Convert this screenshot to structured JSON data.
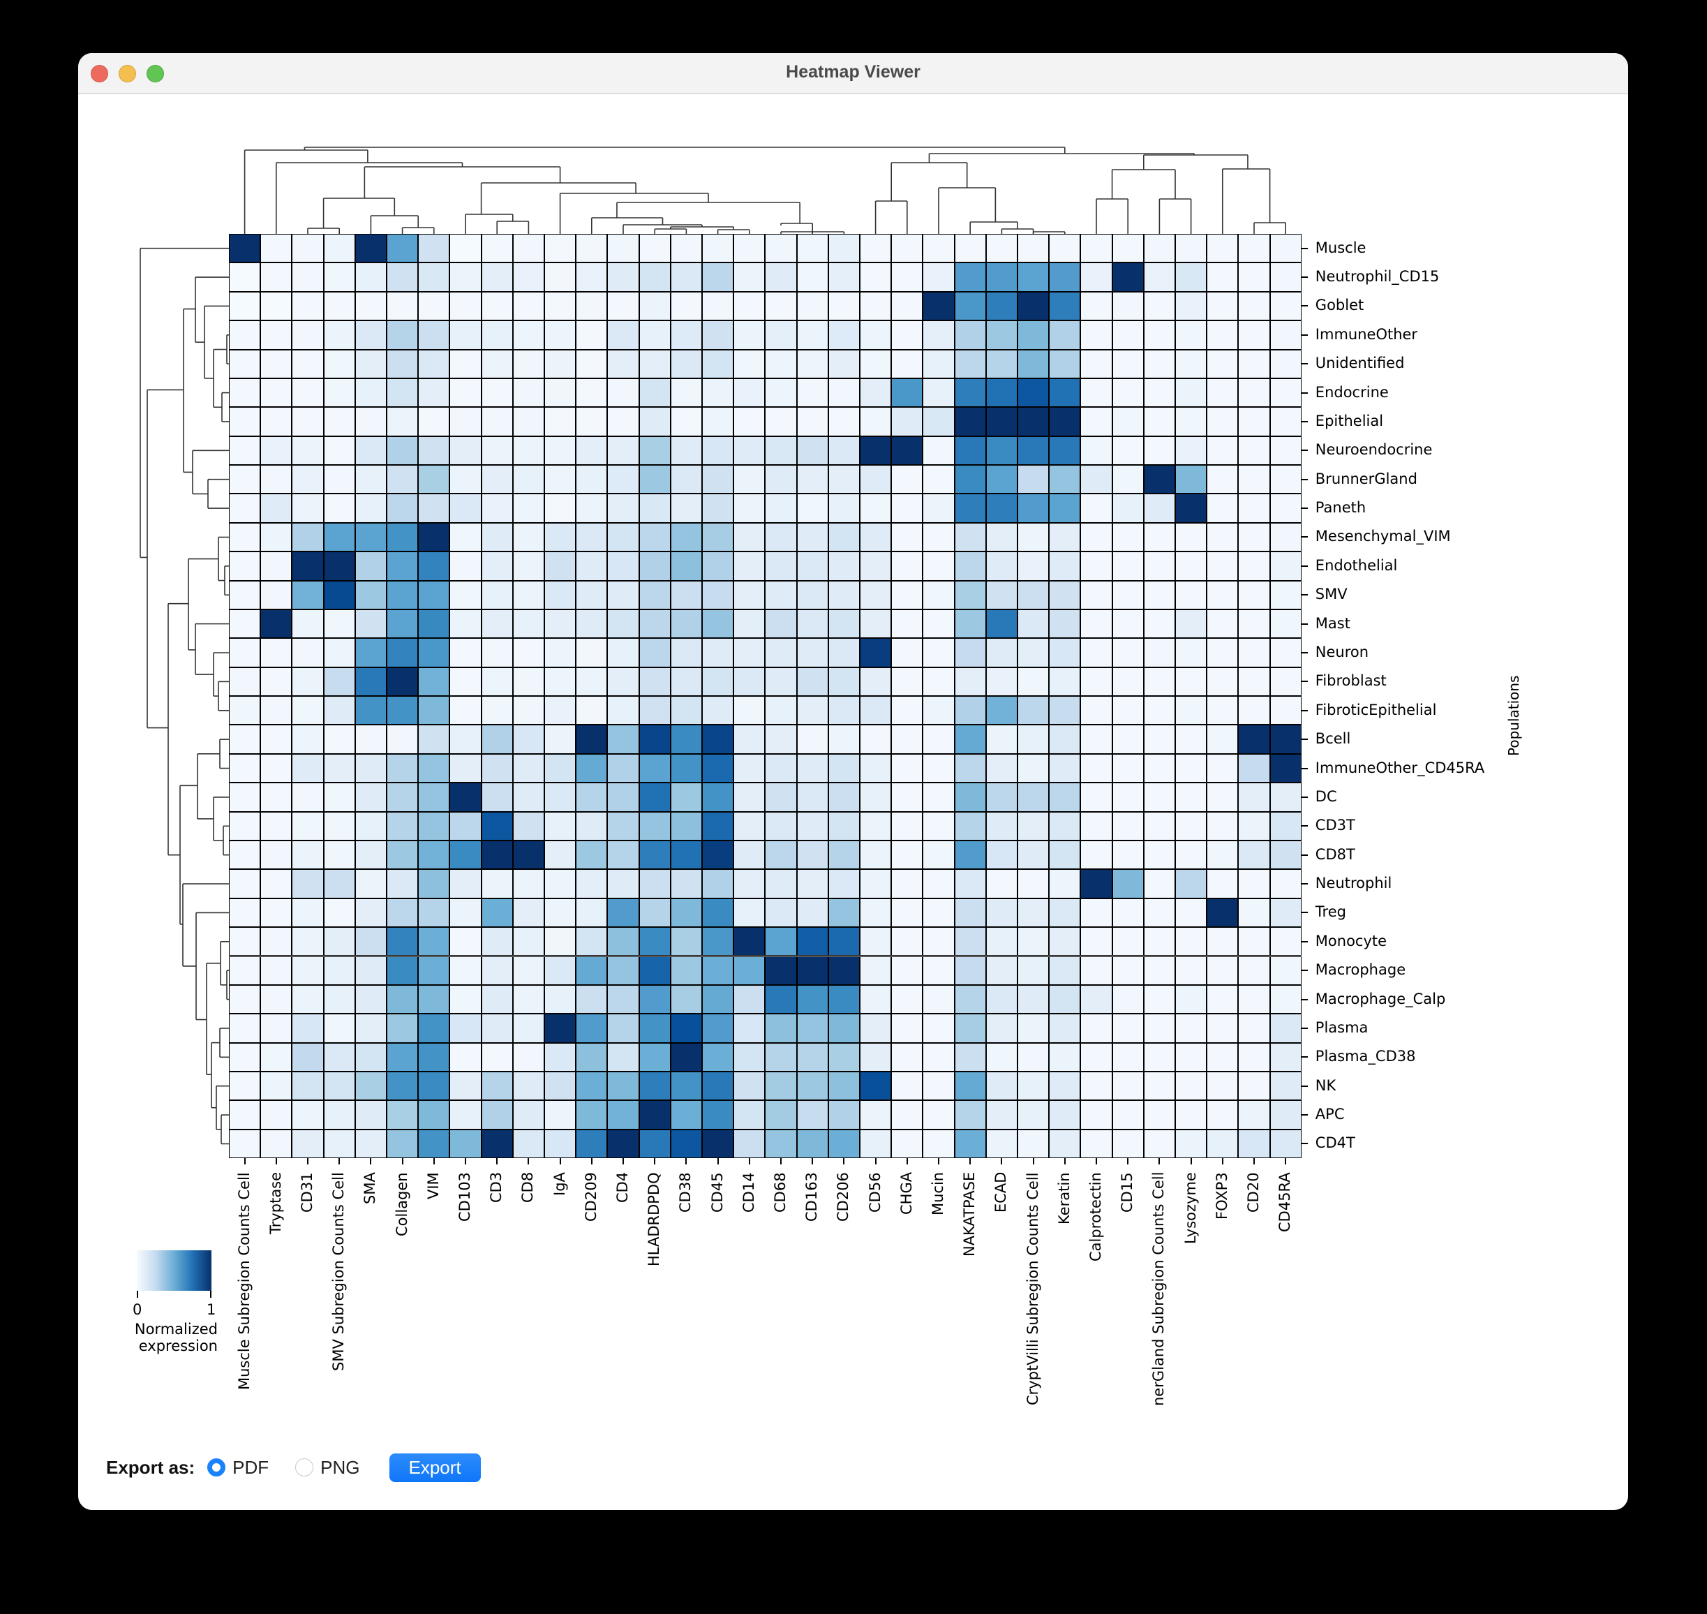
{
  "window": {
    "title": "Heatmap Viewer"
  },
  "chart_data": {
    "type": "heatmap",
    "title": "",
    "xlabel": "",
    "ylabel": "Populations",
    "colormap": "Blues",
    "colorbar": {
      "min": 0,
      "max": 1,
      "ticks": [
        "0",
        "1"
      ],
      "label": "Normalized\nexpression"
    },
    "row_dendrogram": true,
    "col_dendrogram": true,
    "columns": [
      "Muscle Subregion Counts Cell",
      "Tryptase",
      "CD31",
      "SMV Subregion Counts Cell",
      "SMA",
      "Collagen",
      "VIM",
      "CD103",
      "CD3",
      "CD8",
      "IgA",
      "CD209",
      "CD4",
      "HLADRDPDQ",
      "CD38",
      "CD45",
      "CD14",
      "CD68",
      "CD163",
      "CD206",
      "CD56",
      "CHGA",
      "Mucin",
      "NAKATPASE",
      "ECAD",
      "CryptVilli Subregion Counts Cell",
      "Keratin",
      "Calprotectin",
      "CD15",
      "BrunnerGland Subregion Counts Cell",
      "Lysozyme",
      "FOXP3",
      "CD20",
      "CD45RA"
    ],
    "column_labels_display": [
      "Muscle Subregion Counts Cell",
      "Tryptase",
      "CD31",
      "SMV Subregion Counts Cell",
      "SMA",
      "Collagen",
      "VIM",
      "CD103",
      "CD3",
      "CD8",
      "IgA",
      "CD209",
      "CD4",
      "HLADRDPDQ",
      "CD38",
      "CD45",
      "CD14",
      "CD68",
      "CD163",
      "CD206",
      "CD56",
      "CHGA",
      "Mucin",
      "NAKATPASE",
      "ECAD",
      "CryptVilli Subregion Counts Cell",
      "Keratin",
      "Calprotectin",
      "CD15",
      "nerGland Subregion Counts Cell",
      "Lysozyme",
      "FOXP3",
      "CD20",
      "CD45RA"
    ],
    "rows": [
      "Muscle",
      "Neutrophil_CD15",
      "Goblet",
      "ImmuneOther",
      "Unidentified",
      "Endocrine",
      "Epithelial",
      "Neuroendocrine",
      "BrunnerGland",
      "Paneth",
      "Mesenchymal_VIM",
      "Endothelial",
      "SMV",
      "Mast",
      "Neuron",
      "Fibroblast",
      "FibroticEpithelial",
      "Bcell",
      "ImmuneOther_CD45RA",
      "DC",
      "CD3T",
      "CD8T",
      "Neutrophil",
      "Treg",
      "Monocyte",
      "Macrophage",
      "Macrophage_Calp",
      "Plasma",
      "Plasma_CD38",
      "NK",
      "APC",
      "CD4T"
    ],
    "values": [
      [
        1.0,
        0.02,
        0.03,
        0.05,
        1.0,
        0.55,
        0.2,
        0.01,
        0.02,
        0.03,
        0.02,
        0.03,
        0.04,
        0.02,
        0.03,
        0.04,
        0.03,
        0.04,
        0.04,
        0.08,
        0.02,
        0.02,
        0.02,
        0.02,
        0.02,
        0.02,
        0.02,
        0.02,
        0.02,
        0.03,
        0.03,
        0.02,
        0.02,
        0.03
      ],
      [
        0.01,
        0.02,
        0.03,
        0.04,
        0.08,
        0.2,
        0.15,
        0.06,
        0.1,
        0.07,
        0.03,
        0.07,
        0.12,
        0.18,
        0.14,
        0.28,
        0.06,
        0.12,
        0.04,
        0.09,
        0.02,
        0.02,
        0.07,
        0.58,
        0.58,
        0.55,
        0.58,
        0.07,
        1.0,
        0.07,
        0.15,
        0.02,
        0.02,
        0.03
      ],
      [
        0.01,
        0.01,
        0.02,
        0.02,
        0.02,
        0.02,
        0.02,
        0.02,
        0.02,
        0.02,
        0.02,
        0.03,
        0.02,
        0.06,
        0.02,
        0.03,
        0.02,
        0.02,
        0.03,
        0.02,
        0.02,
        0.02,
        1.0,
        0.6,
        0.7,
        1.0,
        0.7,
        0.02,
        0.03,
        0.02,
        0.07,
        0.02,
        0.02,
        0.02
      ],
      [
        0.02,
        0.02,
        0.03,
        0.06,
        0.14,
        0.3,
        0.22,
        0.08,
        0.08,
        0.05,
        0.05,
        0.02,
        0.14,
        0.08,
        0.13,
        0.2,
        0.06,
        0.09,
        0.06,
        0.13,
        0.05,
        0.02,
        0.09,
        0.32,
        0.38,
        0.45,
        0.32,
        0.02,
        0.02,
        0.02,
        0.04,
        0.02,
        0.02,
        0.03
      ],
      [
        0.02,
        0.02,
        0.02,
        0.04,
        0.1,
        0.22,
        0.14,
        0.02,
        0.06,
        0.04,
        0.06,
        0.02,
        0.1,
        0.1,
        0.14,
        0.18,
        0.04,
        0.05,
        0.05,
        0.1,
        0.04,
        0.02,
        0.08,
        0.28,
        0.3,
        0.45,
        0.32,
        0.02,
        0.02,
        0.02,
        0.04,
        0.02,
        0.02,
        0.03
      ],
      [
        0.02,
        0.02,
        0.02,
        0.04,
        0.08,
        0.18,
        0.1,
        0.02,
        0.02,
        0.04,
        0.04,
        0.02,
        0.03,
        0.18,
        0.04,
        0.06,
        0.07,
        0.05,
        0.03,
        0.03,
        0.1,
        0.6,
        0.08,
        0.7,
        0.75,
        0.85,
        0.75,
        0.02,
        0.02,
        0.02,
        0.06,
        0.02,
        0.02,
        0.02
      ],
      [
        0.02,
        0.02,
        0.02,
        0.02,
        0.03,
        0.06,
        0.02,
        0.03,
        0.03,
        0.04,
        0.02,
        0.02,
        0.02,
        0.12,
        0.02,
        0.05,
        0.02,
        0.02,
        0.02,
        0.02,
        0.04,
        0.12,
        0.15,
        1.0,
        1.0,
        1.0,
        1.0,
        0.02,
        0.04,
        0.02,
        0.04,
        0.02,
        0.02,
        0.02
      ],
      [
        0.02,
        0.07,
        0.06,
        0.02,
        0.14,
        0.32,
        0.2,
        0.1,
        0.06,
        0.06,
        0.05,
        0.1,
        0.1,
        0.34,
        0.12,
        0.16,
        0.12,
        0.15,
        0.2,
        0.14,
        1.0,
        1.0,
        0.03,
        0.72,
        0.65,
        0.72,
        0.72,
        0.04,
        0.02,
        0.02,
        0.07,
        0.02,
        0.02,
        0.02
      ],
      [
        0.02,
        0.03,
        0.07,
        0.03,
        0.08,
        0.2,
        0.34,
        0.06,
        0.1,
        0.08,
        0.05,
        0.08,
        0.13,
        0.38,
        0.14,
        0.2,
        0.06,
        0.12,
        0.1,
        0.1,
        0.12,
        0.02,
        0.02,
        0.65,
        0.55,
        0.25,
        0.4,
        0.12,
        0.04,
        1.0,
        0.45,
        0.02,
        0.02,
        0.02
      ],
      [
        0.02,
        0.12,
        0.06,
        0.02,
        0.08,
        0.28,
        0.2,
        0.14,
        0.07,
        0.05,
        0.02,
        0.06,
        0.1,
        0.15,
        0.1,
        0.2,
        0.06,
        0.08,
        0.04,
        0.08,
        0.04,
        0.02,
        0.06,
        0.7,
        0.7,
        0.58,
        0.55,
        0.02,
        0.08,
        0.12,
        1.0,
        0.02,
        0.02,
        0.02
      ],
      [
        0.02,
        0.05,
        0.32,
        0.55,
        0.55,
        0.62,
        1.0,
        0.04,
        0.12,
        0.06,
        0.14,
        0.14,
        0.18,
        0.28,
        0.4,
        0.35,
        0.1,
        0.14,
        0.12,
        0.18,
        0.12,
        0.02,
        0.02,
        0.2,
        0.1,
        0.05,
        0.1,
        0.02,
        0.02,
        0.02,
        0.02,
        0.02,
        0.02,
        0.03
      ],
      [
        0.02,
        0.03,
        1.0,
        1.0,
        0.32,
        0.55,
        0.68,
        0.03,
        0.1,
        0.06,
        0.2,
        0.12,
        0.16,
        0.32,
        0.42,
        0.32,
        0.1,
        0.14,
        0.14,
        0.12,
        0.1,
        0.02,
        0.02,
        0.28,
        0.12,
        0.07,
        0.12,
        0.02,
        0.02,
        0.02,
        0.02,
        0.02,
        0.02,
        0.06
      ],
      [
        0.02,
        0.03,
        0.48,
        0.9,
        0.38,
        0.55,
        0.55,
        0.04,
        0.08,
        0.06,
        0.14,
        0.12,
        0.12,
        0.28,
        0.22,
        0.24,
        0.1,
        0.12,
        0.14,
        0.12,
        0.1,
        0.02,
        0.04,
        0.34,
        0.2,
        0.22,
        0.2,
        0.02,
        0.02,
        0.02,
        0.02,
        0.02,
        0.02,
        0.04
      ],
      [
        0.02,
        1.0,
        0.05,
        0.04,
        0.2,
        0.55,
        0.66,
        0.06,
        0.1,
        0.08,
        0.1,
        0.12,
        0.18,
        0.28,
        0.32,
        0.4,
        0.1,
        0.22,
        0.14,
        0.18,
        0.1,
        0.02,
        0.02,
        0.38,
        0.72,
        0.14,
        0.2,
        0.02,
        0.02,
        0.02,
        0.1,
        0.02,
        0.02,
        0.04
      ],
      [
        0.02,
        0.02,
        0.03,
        0.05,
        0.55,
        0.68,
        0.6,
        0.02,
        0.03,
        0.02,
        0.05,
        0.03,
        0.08,
        0.28,
        0.14,
        0.12,
        0.1,
        0.12,
        0.12,
        0.14,
        0.95,
        0.02,
        0.02,
        0.25,
        0.12,
        0.1,
        0.16,
        0.02,
        0.02,
        0.03,
        0.04,
        0.02,
        0.02,
        0.02
      ],
      [
        0.03,
        0.02,
        0.06,
        0.24,
        0.72,
        1.0,
        0.48,
        0.02,
        0.05,
        0.04,
        0.05,
        0.06,
        0.1,
        0.2,
        0.14,
        0.18,
        0.14,
        0.12,
        0.2,
        0.18,
        0.1,
        0.02,
        0.02,
        0.1,
        0.07,
        0.04,
        0.08,
        0.02,
        0.02,
        0.02,
        0.02,
        0.02,
        0.02,
        0.02
      ],
      [
        0.04,
        0.03,
        0.04,
        0.12,
        0.62,
        0.62,
        0.45,
        0.02,
        0.04,
        0.04,
        0.07,
        0.03,
        0.08,
        0.2,
        0.18,
        0.12,
        0.04,
        0.08,
        0.1,
        0.14,
        0.14,
        0.02,
        0.05,
        0.32,
        0.48,
        0.28,
        0.24,
        0.02,
        0.02,
        0.02,
        0.04,
        0.02,
        0.02,
        0.02
      ],
      [
        0.02,
        0.02,
        0.05,
        0.02,
        0.03,
        0.03,
        0.2,
        0.08,
        0.32,
        0.16,
        0.06,
        1.0,
        0.4,
        0.92,
        0.65,
        0.92,
        0.1,
        0.1,
        0.03,
        0.05,
        0.02,
        0.02,
        0.02,
        0.52,
        0.06,
        0.08,
        0.14,
        0.02,
        0.02,
        0.02,
        0.02,
        0.04,
        1.0,
        1.0
      ],
      [
        0.02,
        0.02,
        0.12,
        0.1,
        0.12,
        0.3,
        0.4,
        0.1,
        0.2,
        0.12,
        0.18,
        0.52,
        0.32,
        0.55,
        0.62,
        0.78,
        0.1,
        0.14,
        0.12,
        0.18,
        0.08,
        0.02,
        0.02,
        0.28,
        0.1,
        0.06,
        0.12,
        0.02,
        0.02,
        0.02,
        0.02,
        0.02,
        0.25,
        1.0
      ],
      [
        0.02,
        0.02,
        0.03,
        0.04,
        0.12,
        0.3,
        0.4,
        1.0,
        0.22,
        0.12,
        0.14,
        0.3,
        0.32,
        0.75,
        0.38,
        0.62,
        0.1,
        0.2,
        0.14,
        0.22,
        0.08,
        0.02,
        0.02,
        0.45,
        0.28,
        0.28,
        0.28,
        0.02,
        0.02,
        0.02,
        0.02,
        0.02,
        0.1,
        0.1
      ],
      [
        0.02,
        0.02,
        0.04,
        0.04,
        0.08,
        0.3,
        0.4,
        0.28,
        0.85,
        0.2,
        0.08,
        0.12,
        0.3,
        0.4,
        0.42,
        0.78,
        0.1,
        0.14,
        0.12,
        0.18,
        0.06,
        0.02,
        0.02,
        0.3,
        0.12,
        0.1,
        0.14,
        0.02,
        0.02,
        0.02,
        0.02,
        0.02,
        0.06,
        0.16
      ],
      [
        0.02,
        0.03,
        0.06,
        0.04,
        0.1,
        0.38,
        0.48,
        0.65,
        1.0,
        1.0,
        0.1,
        0.38,
        0.3,
        0.7,
        0.75,
        0.95,
        0.12,
        0.28,
        0.2,
        0.3,
        0.06,
        0.02,
        0.04,
        0.58,
        0.16,
        0.12,
        0.18,
        0.02,
        0.02,
        0.02,
        0.02,
        0.04,
        0.14,
        0.2
      ],
      [
        0.02,
        0.02,
        0.2,
        0.22,
        0.06,
        0.14,
        0.42,
        0.1,
        0.06,
        0.06,
        0.05,
        0.1,
        0.12,
        0.22,
        0.2,
        0.32,
        0.1,
        0.12,
        0.1,
        0.14,
        0.06,
        0.02,
        0.02,
        0.14,
        0.02,
        0.02,
        0.05,
        1.0,
        0.45,
        0.02,
        0.28,
        0.02,
        0.02,
        0.02
      ],
      [
        0.02,
        0.02,
        0.05,
        0.02,
        0.1,
        0.28,
        0.3,
        0.06,
        0.5,
        0.1,
        0.05,
        0.08,
        0.58,
        0.3,
        0.45,
        0.65,
        0.08,
        0.14,
        0.12,
        0.4,
        0.05,
        0.02,
        0.02,
        0.22,
        0.12,
        0.1,
        0.14,
        0.02,
        0.02,
        0.02,
        0.02,
        1.0,
        0.04,
        0.12
      ],
      [
        0.02,
        0.03,
        0.06,
        0.1,
        0.22,
        0.68,
        0.5,
        0.02,
        0.12,
        0.08,
        0.04,
        0.18,
        0.42,
        0.65,
        0.34,
        0.6,
        1.0,
        0.55,
        0.82,
        0.78,
        0.06,
        0.02,
        0.02,
        0.22,
        0.08,
        0.06,
        0.1,
        0.02,
        0.02,
        0.02,
        0.02,
        0.02,
        0.02,
        0.02
      ],
      [
        0.02,
        0.03,
        0.06,
        0.08,
        0.12,
        0.65,
        0.5,
        0.04,
        0.1,
        0.06,
        0.14,
        0.52,
        0.4,
        0.8,
        0.38,
        0.5,
        0.5,
        1.0,
        1.0,
        1.0,
        0.06,
        0.02,
        0.02,
        0.25,
        0.1,
        0.08,
        0.14,
        0.02,
        0.02,
        0.02,
        0.02,
        0.02,
        0.02,
        0.04
      ],
      [
        0.02,
        0.03,
        0.06,
        0.08,
        0.12,
        0.45,
        0.45,
        0.04,
        0.12,
        0.06,
        0.08,
        0.22,
        0.28,
        0.58,
        0.35,
        0.52,
        0.22,
        0.72,
        0.62,
        0.65,
        0.06,
        0.02,
        0.03,
        0.3,
        0.14,
        0.12,
        0.18,
        0.1,
        0.03,
        0.02,
        0.05,
        0.02,
        0.02,
        0.04
      ],
      [
        0.02,
        0.03,
        0.16,
        0.04,
        0.1,
        0.38,
        0.62,
        0.16,
        0.12,
        0.08,
        1.0,
        0.58,
        0.3,
        0.62,
        0.88,
        0.58,
        0.16,
        0.42,
        0.4,
        0.45,
        0.1,
        0.02,
        0.02,
        0.35,
        0.1,
        0.06,
        0.12,
        0.02,
        0.02,
        0.02,
        0.02,
        0.02,
        0.02,
        0.14
      ],
      [
        0.02,
        0.04,
        0.26,
        0.14,
        0.18,
        0.55,
        0.62,
        0.02,
        0.02,
        0.03,
        0.14,
        0.42,
        0.18,
        0.5,
        1.0,
        0.5,
        0.18,
        0.3,
        0.3,
        0.34,
        0.1,
        0.02,
        0.02,
        0.22,
        0.04,
        0.03,
        0.06,
        0.02,
        0.02,
        0.02,
        0.02,
        0.02,
        0.02,
        0.1
      ],
      [
        0.02,
        0.05,
        0.18,
        0.18,
        0.34,
        0.62,
        0.65,
        0.1,
        0.3,
        0.12,
        0.2,
        0.5,
        0.45,
        0.7,
        0.62,
        0.72,
        0.2,
        0.36,
        0.38,
        0.42,
        0.88,
        0.02,
        0.02,
        0.52,
        0.12,
        0.08,
        0.12,
        0.02,
        0.02,
        0.02,
        0.02,
        0.02,
        0.02,
        0.12
      ],
      [
        0.02,
        0.03,
        0.05,
        0.08,
        0.12,
        0.34,
        0.45,
        0.08,
        0.32,
        0.12,
        0.05,
        0.45,
        0.48,
        1.0,
        0.5,
        0.65,
        0.18,
        0.36,
        0.24,
        0.32,
        0.06,
        0.02,
        0.02,
        0.3,
        0.1,
        0.08,
        0.12,
        0.02,
        0.02,
        0.02,
        0.02,
        0.02,
        0.06,
        0.12
      ],
      [
        0.02,
        0.03,
        0.1,
        0.08,
        0.1,
        0.4,
        0.62,
        0.45,
        1.0,
        0.14,
        0.16,
        0.7,
        1.0,
        0.72,
        0.85,
        1.0,
        0.22,
        0.4,
        0.45,
        0.5,
        0.08,
        0.02,
        0.02,
        0.5,
        0.06,
        0.04,
        0.1,
        0.02,
        0.02,
        0.02,
        0.06,
        0.08,
        0.16,
        0.14
      ]
    ]
  },
  "legend": {
    "tick_min": "0",
    "tick_max": "1",
    "title_line1": "Normalized",
    "title_line2": "expression"
  },
  "export": {
    "label": "Export as:",
    "options": [
      {
        "label": "PDF",
        "selected": true
      },
      {
        "label": "PNG",
        "selected": false
      }
    ],
    "button_label": "Export",
    "accent_color": "#1a82fb"
  }
}
